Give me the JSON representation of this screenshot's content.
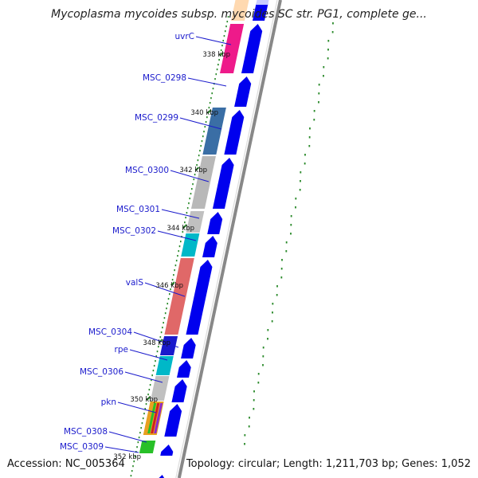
{
  "title": "Mycoplasma mycoides subsp. mycoides SC str. PG1, complete ge...",
  "footer": {
    "accession": "Accession: NC_005364",
    "topology": "Topology: circular; Length: 1,211,703 bp; Genes: 1,052"
  },
  "colors": {
    "backbone": "#888888",
    "forward_cds": "#0000ee",
    "gc_skew": "#2a8a2a",
    "label": "#1a1acc",
    "label_line": "#1a1acc"
  },
  "gene_labels": [
    {
      "name": "uvrC"
    },
    {
      "name": "MSC_0298"
    },
    {
      "name": "MSC_0299"
    },
    {
      "name": "MSC_0300"
    },
    {
      "name": "MSC_0301"
    },
    {
      "name": "MSC_0302"
    },
    {
      "name": "valS"
    },
    {
      "name": "MSC_0304"
    },
    {
      "name": "rpe"
    },
    {
      "name": "MSC_0306"
    },
    {
      "name": "pkn"
    },
    {
      "name": "MSC_0308"
    },
    {
      "name": "MSC_0309"
    }
  ],
  "kbp_labels": [
    "338 kbp",
    "340 kbp",
    "342 kbp",
    "344 kbp",
    "346 kbp",
    "348 kbp",
    "350 kbp",
    "352 kbp"
  ],
  "cog_blocks": [
    {
      "gene": "uvrC",
      "color": "#ee1a8a"
    },
    {
      "gene": "MSC_0299",
      "color": "#3a6ea5"
    },
    {
      "gene": "MSC_0300",
      "color": "#b8b8b8"
    },
    {
      "gene": "MSC_0301",
      "color": "#c0c0c0"
    },
    {
      "gene": "MSC_0302",
      "color": "#00b8c8"
    },
    {
      "gene": "valS",
      "color": "#e06868"
    },
    {
      "gene": "MSC_0304",
      "color": "#1a1acc"
    },
    {
      "gene": "rpe",
      "color": "#00b8c8"
    },
    {
      "gene": "MSC_0306",
      "color": "#c0c0c0"
    },
    {
      "gene": "pkn",
      "color": "#e8a020"
    },
    {
      "gene": "MSC_0308",
      "color": "#28c028"
    }
  ]
}
